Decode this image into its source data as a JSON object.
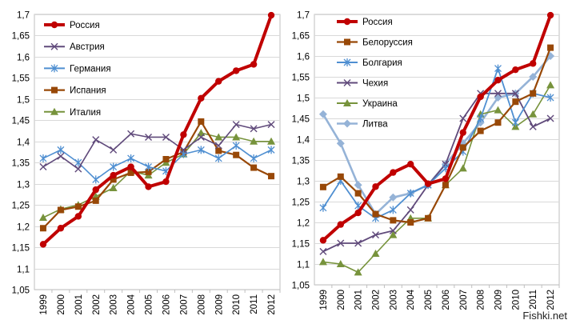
{
  "watermark": "Fishki.net",
  "chart_data": [
    {
      "type": "line",
      "title": "",
      "xlabel": "",
      "ylabel": "",
      "x": [
        "1999",
        "2000",
        "2001",
        "2002",
        "2003",
        "2004",
        "2005",
        "2006",
        "2007",
        "2008",
        "2009",
        "2010",
        "2011",
        "2012"
      ],
      "ylim": [
        1.05,
        1.7
      ],
      "yticks": [
        "1,05",
        "1,1",
        "1,15",
        "1,2",
        "1,25",
        "1,3",
        "1,35",
        "1,4",
        "1,45",
        "1,5",
        "1,55",
        "1,6",
        "1,65",
        "1,7"
      ],
      "grid": true,
      "legend": "top-left",
      "series": [
        {
          "name": "Россия",
          "color": "#c00000",
          "marker": "circle",
          "width": 4,
          "values": [
            1.157,
            1.195,
            1.223,
            1.286,
            1.32,
            1.34,
            1.293,
            1.305,
            1.416,
            1.502,
            1.542,
            1.567,
            1.582,
            1.698
          ]
        },
        {
          "name": "Австрия",
          "color": "#604a7b",
          "marker": "x",
          "width": 1.6,
          "values": [
            1.34,
            1.365,
            1.335,
            1.404,
            1.38,
            1.418,
            1.41,
            1.41,
            1.38,
            1.41,
            1.39,
            1.44,
            1.43,
            1.44
          ]
        },
        {
          "name": "Германия",
          "color": "#4f8fd1",
          "marker": "asterisk",
          "width": 1.6,
          "values": [
            1.36,
            1.38,
            1.35,
            1.31,
            1.34,
            1.36,
            1.34,
            1.33,
            1.37,
            1.38,
            1.36,
            1.39,
            1.36,
            1.38
          ]
        },
        {
          "name": "Испания",
          "color": "#984807",
          "marker": "square",
          "width": 2.2,
          "values": [
            1.195,
            1.238,
            1.246,
            1.26,
            1.31,
            1.326,
            1.328,
            1.358,
            1.375,
            1.447,
            1.378,
            1.368,
            1.338,
            1.318
          ]
        },
        {
          "name": "Италия",
          "color": "#77933c",
          "marker": "triangle",
          "width": 1.6,
          "values": [
            1.22,
            1.24,
            1.25,
            1.27,
            1.29,
            1.33,
            1.32,
            1.35,
            1.37,
            1.42,
            1.41,
            1.41,
            1.4,
            1.4
          ]
        }
      ]
    },
    {
      "type": "line",
      "title": "",
      "xlabel": "",
      "ylabel": "",
      "x": [
        "1999",
        "2000",
        "2001",
        "2002",
        "2003",
        "2004",
        "2005",
        "2006",
        "2007",
        "2008",
        "2009",
        "2010",
        "2011",
        "2012"
      ],
      "ylim": [
        1.05,
        1.7
      ],
      "yticks": [
        "1,05",
        "1,1",
        "1,15",
        "1,2",
        "1,25",
        "1,3",
        "1,35",
        "1,4",
        "1,45",
        "1,5",
        "1,55",
        "1,6",
        "1,65",
        "1,7"
      ],
      "grid": true,
      "legend": "top-left",
      "series": [
        {
          "name": "Россия",
          "color": "#c00000",
          "marker": "circle",
          "width": 4,
          "values": [
            1.157,
            1.195,
            1.223,
            1.286,
            1.32,
            1.34,
            1.293,
            1.305,
            1.416,
            1.502,
            1.542,
            1.567,
            1.582,
            1.698
          ]
        },
        {
          "name": "Белоруссия",
          "color": "#984807",
          "marker": "square",
          "width": 2.2,
          "values": [
            1.285,
            1.31,
            1.27,
            1.22,
            1.205,
            1.2,
            1.21,
            1.29,
            1.38,
            1.42,
            1.44,
            1.49,
            1.51,
            1.62
          ]
        },
        {
          "name": "Болгария",
          "color": "#4f8fd1",
          "marker": "asterisk",
          "width": 1.8,
          "values": [
            1.235,
            1.3,
            1.24,
            1.21,
            1.23,
            1.27,
            1.29,
            1.33,
            1.37,
            1.45,
            1.57,
            1.44,
            1.51,
            1.5
          ]
        },
        {
          "name": "Чехия",
          "color": "#604a7b",
          "marker": "x",
          "width": 1.8,
          "values": [
            1.13,
            1.15,
            1.15,
            1.17,
            1.18,
            1.23,
            1.29,
            1.34,
            1.45,
            1.51,
            1.51,
            1.51,
            1.43,
            1.45
          ]
        },
        {
          "name": "Украина",
          "color": "#77933c",
          "marker": "triangle",
          "width": 1.6,
          "values": [
            1.105,
            1.1,
            1.08,
            1.125,
            1.17,
            1.21,
            1.21,
            1.29,
            1.33,
            1.46,
            1.47,
            1.43,
            1.46,
            1.53
          ]
        },
        {
          "name": "Литва",
          "color": "#95b3d7",
          "marker": "diamond",
          "width": 2.6,
          "values": [
            1.46,
            1.39,
            1.29,
            1.22,
            1.26,
            1.27,
            1.29,
            1.34,
            1.39,
            1.44,
            1.5,
            1.51,
            1.55,
            1.6
          ]
        }
      ]
    }
  ]
}
